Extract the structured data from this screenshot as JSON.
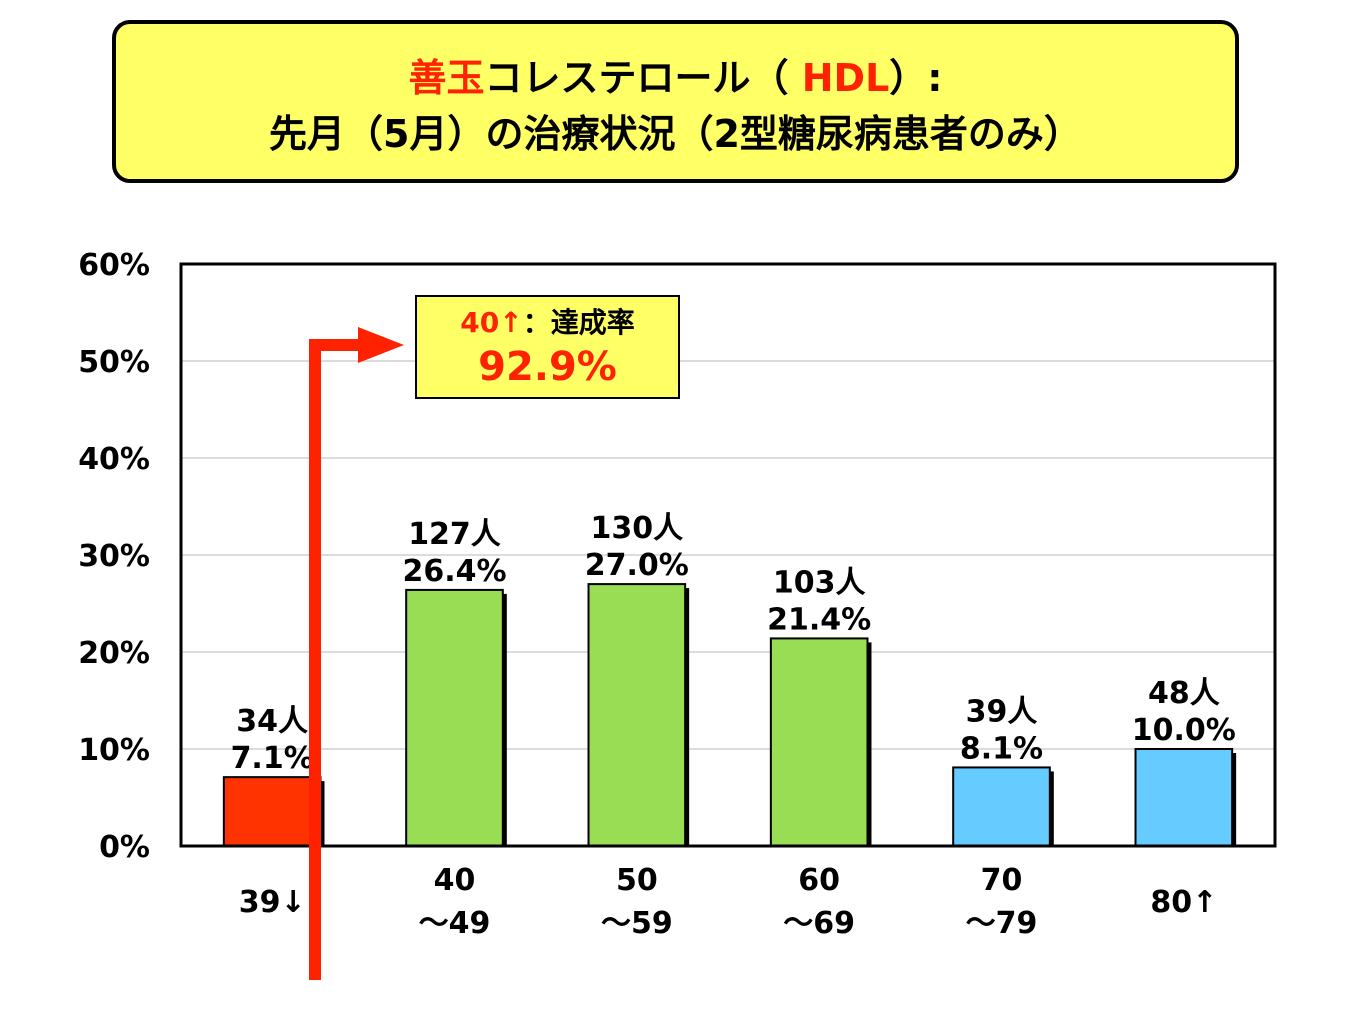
{
  "title": {
    "line1_red": "善玉",
    "line1_mid": "コレステロール（ ",
    "line1_red2": "HDL",
    "line1_end": "）:",
    "line2": "先月（5月）の治療状況（2型糖尿病患者のみ）"
  },
  "annotation": {
    "red_part": "40↑",
    "label": "：達成率",
    "value": "92.9%"
  },
  "colors": {
    "title_bg": "#ffff66",
    "red_accent": "#ff2200",
    "bar_low": "#ff3300",
    "bar_mid": "#99dd55",
    "bar_high": "#66ccff"
  },
  "chart_data": {
    "type": "bar",
    "ylim": [
      0,
      60
    ],
    "yticks": [
      "0%",
      "10%",
      "20%",
      "30%",
      "40%",
      "50%",
      "60%"
    ],
    "grid": true,
    "categories": [
      {
        "line1": "39↓",
        "line2": ""
      },
      {
        "line1": "40",
        "line2": "～49"
      },
      {
        "line1": "50",
        "line2": "～59"
      },
      {
        "line1": "60",
        "line2": "～69"
      },
      {
        "line1": "70",
        "line2": "～79"
      },
      {
        "line1": "80↑",
        "line2": ""
      }
    ],
    "values": [
      7.1,
      26.4,
      27.0,
      21.4,
      8.1,
      10.0
    ],
    "counts": [
      "34人",
      "127人",
      "130人",
      "103人",
      "39人",
      "48人"
    ],
    "percent_labels": [
      "7.1%",
      "26.4%",
      "27.0%",
      "21.4%",
      "8.1%",
      "10.0%"
    ],
    "bar_colors": [
      "#ff3300",
      "#99dd55",
      "#99dd55",
      "#99dd55",
      "#66ccff",
      "#66ccff"
    ]
  }
}
